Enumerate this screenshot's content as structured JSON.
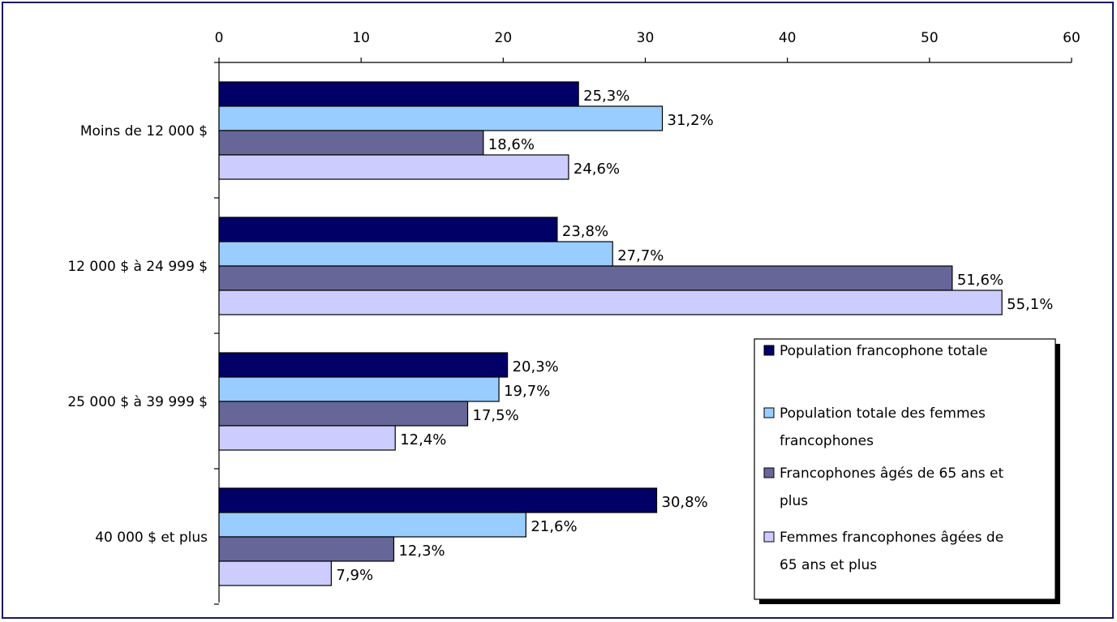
{
  "chart_data": {
    "type": "bar",
    "orientation": "horizontal",
    "categories": [
      "Moins de 12 000 $",
      "12 000 $ à 24 999 $",
      "25 000 $ à 39 999 $",
      "40 000 $ et plus"
    ],
    "series": [
      {
        "name": "Population francophone totale",
        "color": "#000066",
        "values": [
          25.3,
          23.8,
          20.3,
          30.8
        ],
        "labels": [
          "25,3%",
          "23,8%",
          "20,3%",
          "30,8%"
        ]
      },
      {
        "name": "Population totale des femmes francophones",
        "color": "#99ccff",
        "values": [
          31.2,
          27.7,
          19.7,
          21.6
        ],
        "labels": [
          "31,2%",
          "27,7%",
          "19,7%",
          "21,6%"
        ]
      },
      {
        "name": "Francophones âgés de 65 ans et plus",
        "color": "#666699",
        "values": [
          18.6,
          51.6,
          17.5,
          12.3
        ],
        "labels": [
          "18,6%",
          "51,6%",
          "17,5%",
          "12,3%"
        ]
      },
      {
        "name": "Femmes francophones âgées de 65 ans et plus",
        "color": "#ccccff",
        "values": [
          24.6,
          55.1,
          12.4,
          7.9
        ],
        "labels": [
          "24,6%",
          "55,1%",
          "12,4%",
          "7,9%"
        ]
      }
    ],
    "xlim": [
      0,
      60
    ],
    "x_ticks": [
      "0",
      "10",
      "20",
      "30",
      "40",
      "50",
      "60"
    ],
    "x_axis_position": "top",
    "grid": false,
    "legend_position": "bottom-right",
    "legend_lines": [
      [
        "Population francophone totale"
      ],
      [
        "Population totale des femmes",
        "francophones"
      ],
      [
        "Francophones âgés de 65 ans et",
        "plus"
      ],
      [
        "Femmes francophones âgées de",
        "65 ans et plus"
      ]
    ]
  }
}
